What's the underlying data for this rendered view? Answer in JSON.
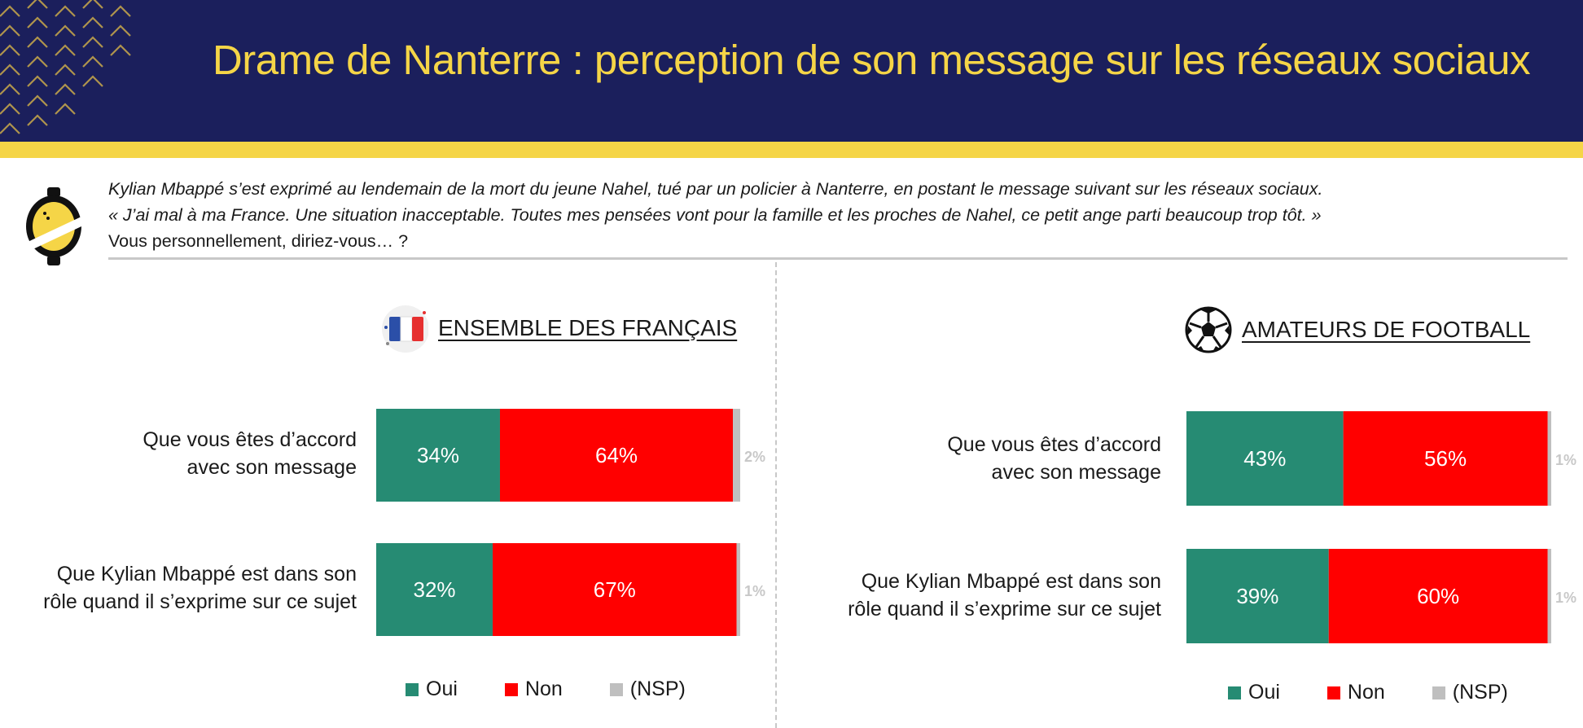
{
  "header": {
    "title": "Drame de Nanterre : perception de son message sur les réseaux sociaux"
  },
  "intro": {
    "line1": "Kylian Mbappé s’est exprimé au lendemain de la mort du jeune Nahel, tué par un policier à Nanterre, en postant le message suivant sur les réseaux sociaux.",
    "line2": "« J’ai mal à ma France. Une situation inacceptable. Toutes mes pensées vont pour la famille et les proches de Nahel, ce petit ange parti beaucoup trop tôt. »",
    "question": "Vous personnellement, diriez-vous… ?"
  },
  "icons": {
    "logo": "survey-institute-logo-icon",
    "france": "france-flag-icon",
    "football": "football-ball-icon"
  },
  "colors": {
    "banner": "#1b1f5c",
    "accent": "#f5d547",
    "oui": "#268b73",
    "non": "#ff0000",
    "nsp": "#bfbfbf"
  },
  "legend": {
    "oui": "Oui",
    "non": "Non",
    "nsp": "(NSP)"
  },
  "chart_data": [
    {
      "type": "bar",
      "orientation": "horizontal",
      "stacked": true,
      "title": "ENSEMBLE DES FRANÇAIS",
      "categories": [
        [
          "Que vous êtes d’accord",
          "avec son message"
        ],
        [
          "Que Kylian Mbappé est dans son",
          "rôle quand il s’exprime sur ce sujet"
        ]
      ],
      "series": [
        {
          "name": "Oui",
          "values": [
            34,
            32
          ],
          "labels": [
            "34%",
            "32%"
          ]
        },
        {
          "name": "Non",
          "values": [
            64,
            67
          ],
          "labels": [
            "64%",
            "67%"
          ]
        },
        {
          "name": "(NSP)",
          "values": [
            2,
            1
          ],
          "labels": [
            "2%",
            "1%"
          ]
        }
      ],
      "xlim": [
        0,
        100
      ],
      "legend": "bottom"
    },
    {
      "type": "bar",
      "orientation": "horizontal",
      "stacked": true,
      "title": "AMATEURS DE FOOTBALL",
      "categories": [
        [
          "Que vous êtes d’accord",
          "avec son message"
        ],
        [
          "Que Kylian Mbappé est dans son",
          "rôle quand il s’exprime sur ce sujet"
        ]
      ],
      "series": [
        {
          "name": "Oui",
          "values": [
            43,
            39
          ],
          "labels": [
            "43%",
            "39%"
          ]
        },
        {
          "name": "Non",
          "values": [
            56,
            60
          ],
          "labels": [
            "56%",
            "60%"
          ]
        },
        {
          "name": "(NSP)",
          "values": [
            1,
            1
          ],
          "labels": [
            "1%",
            "1%"
          ]
        }
      ],
      "xlim": [
        0,
        100
      ],
      "legend": "bottom"
    }
  ]
}
